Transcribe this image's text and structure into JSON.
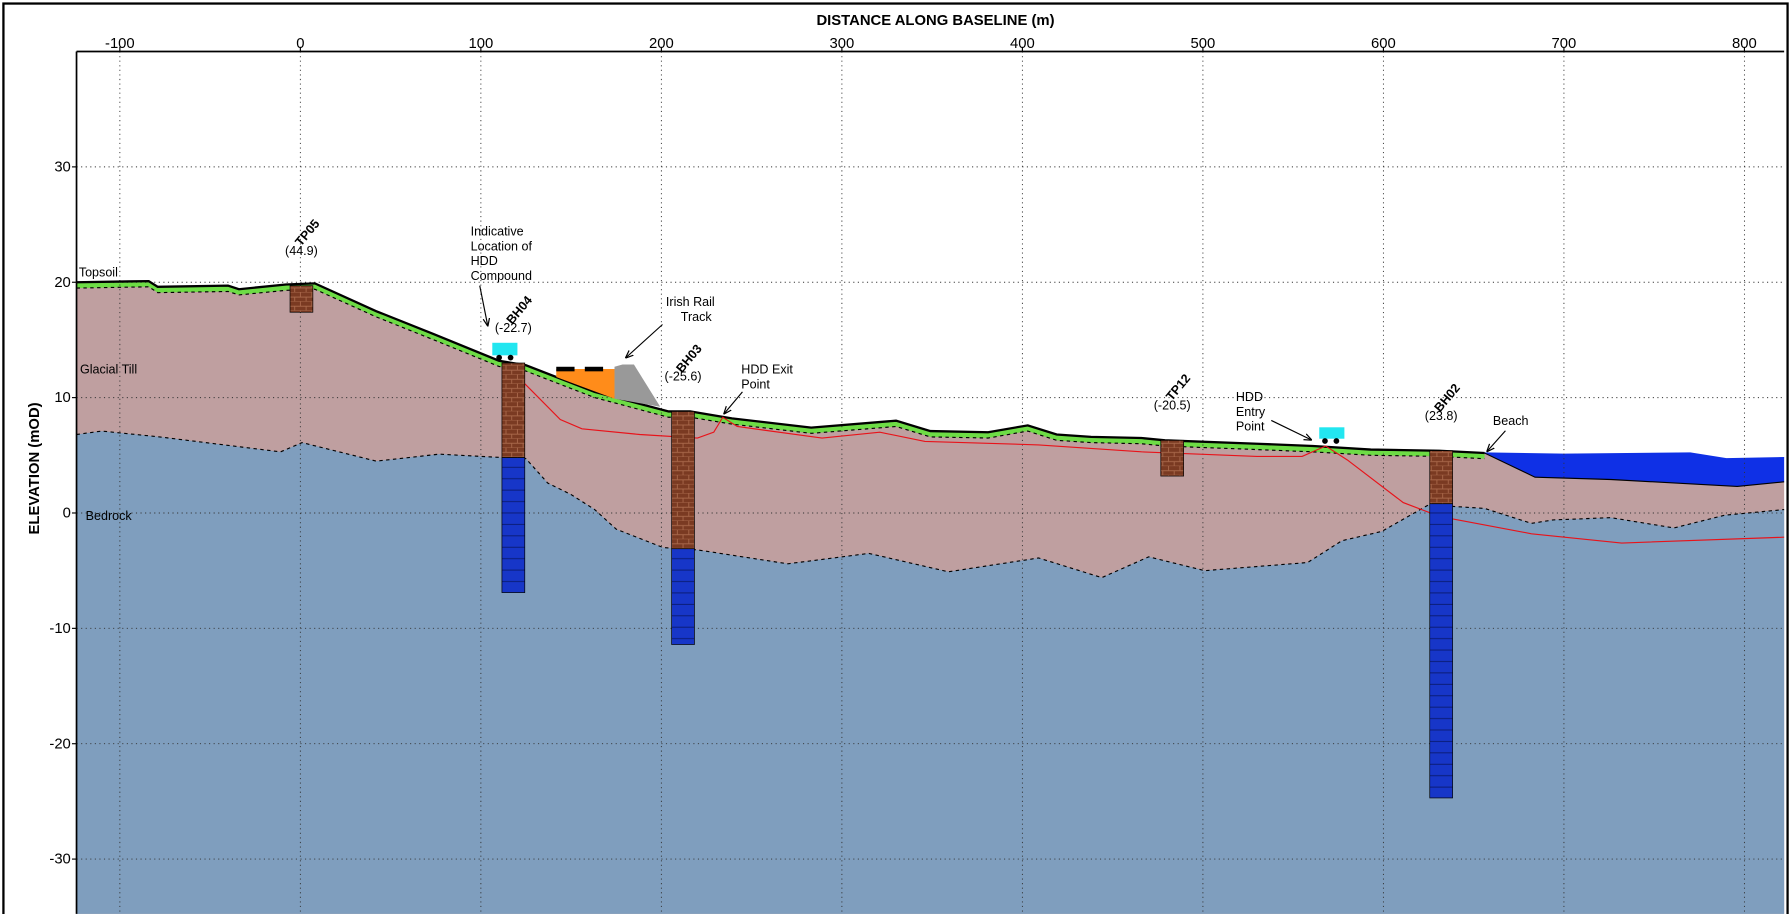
{
  "chart_data": {
    "type": "cross-section",
    "x_label": "DISTANCE ALONG BASELINE (m)",
    "y_label": "ELEVATION (mOD)",
    "xlim": [
      -124,
      822
    ],
    "ylim": [
      -34.75,
      40
    ],
    "xticks": [
      -100,
      0,
      100,
      200,
      300,
      400,
      500,
      600,
      700,
      800
    ],
    "yticks": [
      -30,
      -20,
      -10,
      0,
      10,
      20,
      30
    ],
    "grid": true,
    "layers": [
      {
        "label": "Topsoil",
        "color": "#6ddc45"
      },
      {
        "label": "Glacial Till",
        "color": "#bf9fa0"
      },
      {
        "label": "Bedrock",
        "color": "#7f9ebe"
      }
    ],
    "topsoil_thickness": 0.5,
    "ground": {
      "color": "#000000",
      "x": [
        -124,
        -84,
        -79,
        -40,
        -34,
        -8,
        8,
        42,
        74,
        110,
        125,
        163,
        204,
        216,
        239,
        283,
        330,
        349,
        381,
        403,
        419,
        438,
        466,
        479,
        530,
        561,
        593,
        631,
        656,
        684,
        726,
        796,
        822
      ],
      "y": [
        20.0,
        20.1,
        19.6,
        19.7,
        19.4,
        19.8,
        19.9,
        17.5,
        15.5,
        13.2,
        12.8,
        10.5,
        8.8,
        8.8,
        8.2,
        7.4,
        8.0,
        7.1,
        7.0,
        7.6,
        6.8,
        6.6,
        6.5,
        6.3,
        6.0,
        5.8,
        5.5,
        5.4,
        5.2,
        3.1,
        2.9,
        2.3,
        2.7
      ]
    },
    "rockhead": {
      "color": "#000000",
      "x": [
        -124,
        -110,
        -78,
        -11,
        1,
        42,
        77,
        112,
        125,
        137,
        150,
        163,
        175,
        201,
        220,
        270,
        315,
        359,
        409,
        444,
        470,
        501,
        558,
        577,
        599,
        625,
        656,
        682,
        694,
        726,
        761,
        789,
        822
      ],
      "y": [
        6.8,
        7.1,
        6.6,
        5.3,
        6.1,
        4.5,
        5.1,
        4.8,
        4.7,
        2.6,
        1.6,
        0.3,
        -1.4,
        -3.0,
        -3.2,
        -4.4,
        -3.5,
        -5.1,
        -3.9,
        -5.6,
        -3.8,
        -5.0,
        -4.3,
        -2.4,
        -1.6,
        0.7,
        0.4,
        -0.9,
        -0.6,
        -0.4,
        -1.3,
        -0.2,
        0.3
      ]
    },
    "hdd_path": {
      "color": "#e8131a",
      "x": [
        112,
        125,
        144,
        156,
        188,
        220,
        229,
        234,
        242,
        289,
        321,
        346,
        409,
        466,
        530,
        555,
        568,
        580,
        611,
        631,
        682,
        732,
        822
      ],
      "y": [
        13.0,
        11.1,
        8.1,
        7.3,
        6.8,
        6.5,
        7.0,
        8.3,
        7.5,
        6.5,
        7.0,
        6.2,
        5.9,
        5.3,
        4.9,
        4.9,
        5.8,
        4.6,
        0.9,
        -0.3,
        -1.8,
        -2.6,
        -2.1
      ]
    },
    "sea": {
      "color": "#0f30e6",
      "x": [
        656,
        700,
        770,
        790,
        822
      ],
      "y": [
        5.2,
        5.1,
        5.2,
        4.7,
        4.8
      ]
    },
    "boreholes": [
      {
        "name": "TP05",
        "note": "(44.9)",
        "x": 0.6,
        "top": 19.7,
        "bottom": 17.4
      },
      {
        "name": "BH04",
        "note": "(-22.7)",
        "x": 118,
        "top": 13.0,
        "rockhead": 4.8,
        "bottom": -6.9
      },
      {
        "name": "BH03",
        "note": "(-25.6)",
        "x": 212,
        "top": 8.8,
        "rockhead": -3.1,
        "bottom": -11.4
      },
      {
        "name": "TP12",
        "note": "(-20.5)",
        "x": 483,
        "top": 6.3,
        "bottom": 3.2
      },
      {
        "name": "BH02",
        "note": "(23.8)",
        "x": 632,
        "top": 5.4,
        "rockhead": 0.8,
        "bottom": -24.7
      }
    ],
    "annotations": [
      {
        "lines": [
          "Indicative",
          "Location of",
          "HDD",
          "Compound"
        ]
      },
      {
        "lines": [
          "Irish Rail",
          "Track"
        ]
      },
      {
        "lines": [
          "HDD Exit",
          "Point"
        ]
      },
      {
        "lines": [
          "HDD",
          "Entry",
          "Point"
        ]
      },
      {
        "lines": [
          "Beach"
        ]
      }
    ]
  }
}
